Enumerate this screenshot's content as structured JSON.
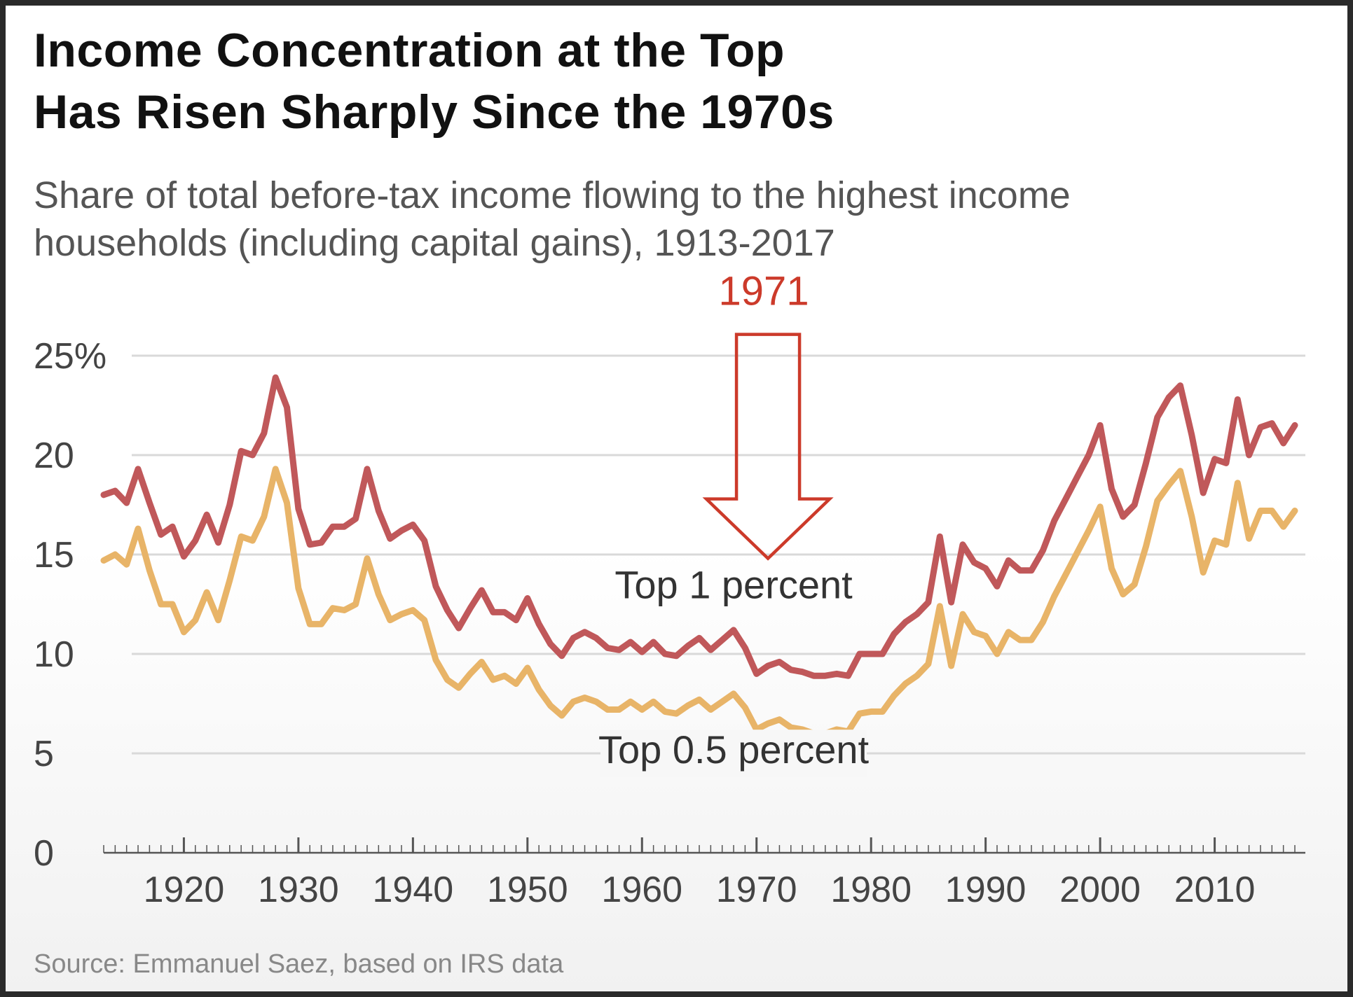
{
  "header": {
    "title_line1": "Income Concentration at the Top",
    "title_line2": "Has Risen Sharply Since the 1970s",
    "subtitle_line1": "Share of total before-tax income flowing to the highest income",
    "subtitle_line2": "households (including capital gains), 1913-2017"
  },
  "footer": {
    "source": "Source: Emmanuel Saez, based on IRS data"
  },
  "chart_data": {
    "type": "line",
    "title": "Income Concentration at the Top Has Risen Sharply Since the 1970s",
    "xlabel": "",
    "ylabel": "",
    "xlim": [
      1913,
      2017
    ],
    "ylim": [
      0,
      25
    ],
    "grid": true,
    "y_ticks": [
      {
        "value": 0,
        "label": "0"
      },
      {
        "value": 5,
        "label": "5"
      },
      {
        "value": 10,
        "label": "10"
      },
      {
        "value": 15,
        "label": "15"
      },
      {
        "value": 20,
        "label": "20"
      },
      {
        "value": 25,
        "label": "25%"
      }
    ],
    "x_ticks": [
      {
        "value": 1920,
        "label": "1920"
      },
      {
        "value": 1930,
        "label": "1930"
      },
      {
        "value": 1940,
        "label": "1940"
      },
      {
        "value": 1950,
        "label": "1950"
      },
      {
        "value": 1960,
        "label": "1960"
      },
      {
        "value": 1970,
        "label": "1970"
      },
      {
        "value": 1980,
        "label": "1980"
      },
      {
        "value": 1990,
        "label": "1990"
      },
      {
        "value": 2000,
        "label": "2000"
      },
      {
        "value": 2010,
        "label": "2010"
      }
    ],
    "x": [
      1913,
      1914,
      1915,
      1916,
      1917,
      1918,
      1919,
      1920,
      1921,
      1922,
      1923,
      1924,
      1925,
      1926,
      1927,
      1928,
      1929,
      1930,
      1931,
      1932,
      1933,
      1934,
      1935,
      1936,
      1937,
      1938,
      1939,
      1940,
      1941,
      1942,
      1943,
      1944,
      1945,
      1946,
      1947,
      1948,
      1949,
      1950,
      1951,
      1952,
      1953,
      1954,
      1955,
      1956,
      1957,
      1958,
      1959,
      1960,
      1961,
      1962,
      1963,
      1964,
      1965,
      1966,
      1967,
      1968,
      1969,
      1970,
      1971,
      1972,
      1973,
      1974,
      1975,
      1976,
      1977,
      1978,
      1979,
      1980,
      1981,
      1982,
      1983,
      1984,
      1985,
      1986,
      1987,
      1988,
      1989,
      1990,
      1991,
      1992,
      1993,
      1994,
      1995,
      1996,
      1997,
      1998,
      1999,
      2000,
      2001,
      2002,
      2003,
      2004,
      2005,
      2006,
      2007,
      2008,
      2009,
      2010,
      2011,
      2012,
      2013,
      2014,
      2015,
      2016,
      2017
    ],
    "series": [
      {
        "name": "Top 1 percent",
        "color": "#c0585a",
        "values": [
          18.0,
          18.2,
          17.6,
          19.3,
          17.6,
          16.0,
          16.4,
          14.9,
          15.7,
          17.0,
          15.6,
          17.5,
          20.2,
          20.0,
          21.1,
          23.9,
          22.4,
          17.3,
          15.5,
          15.6,
          16.4,
          16.4,
          16.8,
          19.3,
          17.2,
          15.8,
          16.2,
          16.5,
          15.7,
          13.4,
          12.2,
          11.3,
          12.3,
          13.2,
          12.1,
          12.1,
          11.7,
          12.8,
          11.5,
          10.5,
          9.9,
          10.8,
          11.1,
          10.8,
          10.3,
          10.2,
          10.6,
          10.1,
          10.6,
          10.0,
          9.9,
          10.4,
          10.8,
          10.2,
          10.7,
          11.2,
          10.3,
          9.0,
          9.4,
          9.6,
          9.2,
          9.1,
          8.9,
          8.9,
          9.0,
          8.9,
          10.0,
          10.0,
          10.0,
          11.0,
          11.6,
          12.0,
          12.6,
          15.9,
          12.6,
          15.5,
          14.6,
          14.3,
          13.4,
          14.7,
          14.2,
          14.2,
          15.2,
          16.7,
          17.8,
          18.9,
          20.0,
          21.5,
          18.3,
          16.9,
          17.5,
          19.6,
          21.9,
          22.9,
          23.5,
          21.0,
          18.1,
          19.8,
          19.6,
          22.8,
          20.0,
          21.4,
          21.6,
          20.6,
          21.5
        ]
      },
      {
        "name": "Top 0.5 percent",
        "color": "#e8b468",
        "values": [
          14.7,
          15.0,
          14.5,
          16.3,
          14.2,
          12.5,
          12.5,
          11.1,
          11.7,
          13.1,
          11.7,
          13.7,
          15.9,
          15.7,
          16.9,
          19.3,
          17.6,
          13.3,
          11.5,
          11.5,
          12.3,
          12.2,
          12.5,
          14.8,
          13.0,
          11.7,
          12.0,
          12.2,
          11.7,
          9.7,
          8.7,
          8.3,
          9.0,
          9.6,
          8.7,
          8.9,
          8.5,
          9.3,
          8.2,
          7.4,
          6.9,
          7.6,
          7.8,
          7.6,
          7.2,
          7.2,
          7.6,
          7.2,
          7.6,
          7.1,
          7.0,
          7.4,
          7.7,
          7.2,
          7.6,
          8.0,
          7.3,
          6.2,
          6.5,
          6.7,
          6.3,
          6.2,
          6.0,
          6.0,
          6.2,
          6.1,
          7.0,
          7.1,
          7.1,
          7.9,
          8.5,
          8.9,
          9.5,
          12.4,
          9.4,
          12.0,
          11.1,
          10.9,
          10.0,
          11.1,
          10.7,
          10.7,
          11.6,
          12.9,
          14.0,
          15.1,
          16.2,
          17.4,
          14.3,
          13.0,
          13.5,
          15.4,
          17.7,
          18.5,
          19.2,
          16.9,
          14.1,
          15.7,
          15.5,
          18.6,
          15.8,
          17.2,
          17.2,
          16.4,
          17.2
        ]
      }
    ],
    "annotations": [
      {
        "text": "Top 1 percent",
        "series": "Top 1 percent",
        "x": 1968,
        "y": 12.8
      },
      {
        "text": "Top 0.5 percent",
        "series": "Top 0.5 percent",
        "x": 1968,
        "y": 4.5
      },
      {
        "text": "1971",
        "type": "arrow",
        "x": 1971,
        "y": 14.8,
        "color": "#cc3a2a"
      }
    ]
  }
}
